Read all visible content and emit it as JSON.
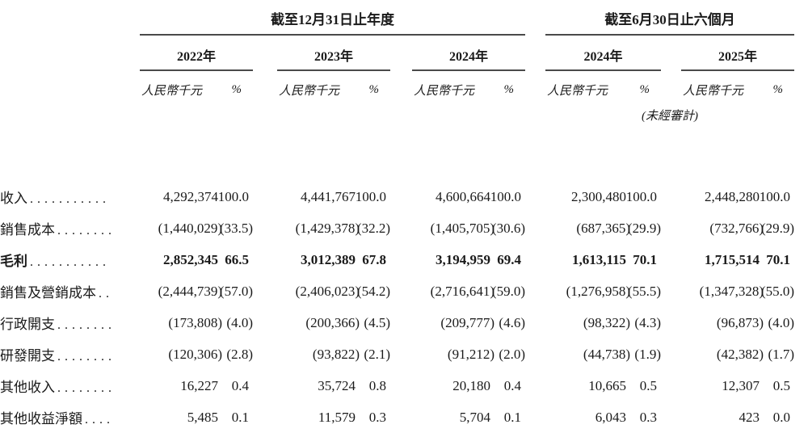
{
  "page": {
    "background": "#ffffff",
    "text_color": "#1a1a1a",
    "rule_color": "#4a4a4a"
  },
  "table": {
    "sections": [
      {
        "title": "截至12月31日止年度"
      },
      {
        "title": "截至6月30日止六個月",
        "note": "(未經審計)"
      }
    ],
    "years": [
      "2022年",
      "2023年",
      "2024年",
      "2024年",
      "2025年"
    ],
    "unit_header": "人民幣千元",
    "pct_header": "%",
    "rows": [
      {
        "label": "收入",
        "leaders": "...........",
        "bold": false,
        "values": [
          "4,292,374",
          "100.0",
          "4,441,767",
          "100.0",
          "4,600,664",
          "100.0",
          "2,300,480",
          "100.0",
          "2,448,280",
          "100.0"
        ]
      },
      {
        "label": "銷售成本",
        "leaders": "........",
        "bold": false,
        "values": [
          "(1,440,029)",
          "(33.5)",
          "(1,429,378)",
          "(32.2)",
          "(1,405,705)",
          "(30.6)",
          "(687,365)",
          "(29.9)",
          "(732,766)",
          "(29.9)"
        ]
      },
      {
        "label": "毛利",
        "leaders": "...........",
        "bold": true,
        "values": [
          "2,852,345",
          "66.5",
          "3,012,389",
          "67.8",
          "3,194,959",
          "69.4",
          "1,613,115",
          "70.1",
          "1,715,514",
          "70.1"
        ]
      },
      {
        "label": "銷售及營銷成本",
        "leaders": "..",
        "bold": false,
        "values": [
          "(2,444,739)",
          "(57.0)",
          "(2,406,023)",
          "(54.2)",
          "(2,716,641)",
          "(59.0)",
          "(1,276,958)",
          "(55.5)",
          "(1,347,328)",
          "(55.0)"
        ]
      },
      {
        "label": "行政開支",
        "leaders": "........",
        "bold": false,
        "values": [
          "(173,808)",
          "(4.0)",
          "(200,366)",
          "(4.5)",
          "(209,777)",
          "(4.6)",
          "(98,322)",
          "(4.3)",
          "(96,873)",
          "(4.0)"
        ]
      },
      {
        "label": "研發開支",
        "leaders": "........",
        "bold": false,
        "values": [
          "(120,306)",
          "(2.8)",
          "(93,822)",
          "(2.1)",
          "(91,212)",
          "(2.0)",
          "(44,738)",
          "(1.9)",
          "(42,382)",
          "(1.7)"
        ]
      },
      {
        "label": "其他收入",
        "leaders": "........",
        "bold": false,
        "values": [
          "16,227",
          "0.4",
          "35,724",
          "0.8",
          "20,180",
          "0.4",
          "10,665",
          "0.5",
          "12,307",
          "0.5"
        ]
      },
      {
        "label": "其他收益淨額",
        "leaders": "....",
        "bold": false,
        "values": [
          "5,485",
          "0.1",
          "11,579",
          "0.3",
          "5,704",
          "0.1",
          "6,043",
          "0.3",
          "423",
          "0.0"
        ]
      }
    ]
  }
}
